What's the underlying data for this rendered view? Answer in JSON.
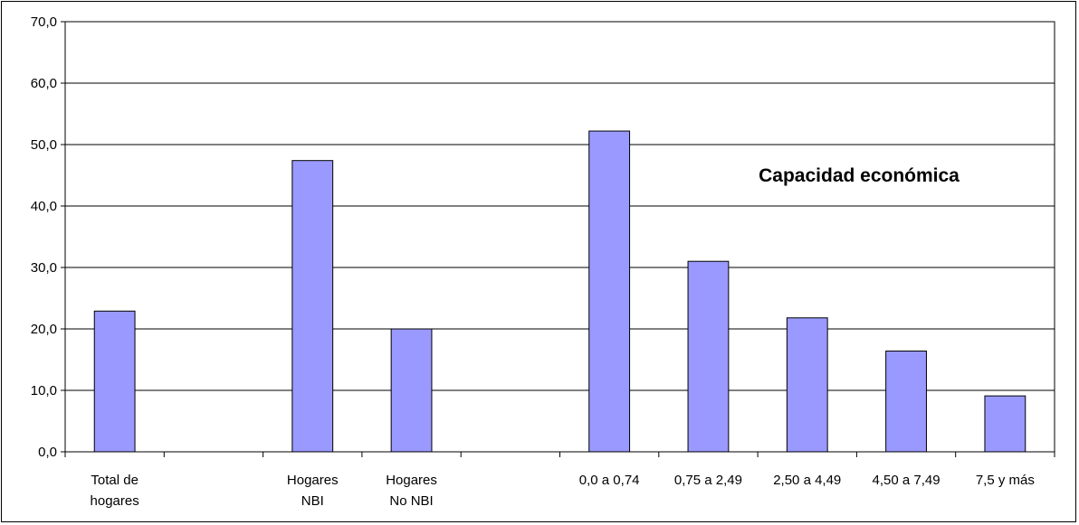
{
  "chart_data": {
    "type": "bar",
    "title": "",
    "annotation": "Capacidad económica",
    "xlabel": "",
    "ylabel": "",
    "ylim": [
      0,
      70
    ],
    "yticks": [
      "0,0",
      "10,0",
      "20,0",
      "30,0",
      "40,0",
      "50,0",
      "60,0",
      "70,0"
    ],
    "grid": true,
    "categories": [
      [
        "Total de",
        "hogares"
      ],
      [],
      [
        "Hogares",
        "NBI"
      ],
      [
        "Hogares",
        "No NBI"
      ],
      [],
      [
        "0,0 a 0,74"
      ],
      [
        "0,75 a 2,49"
      ],
      [
        "2,50 a 4,49"
      ],
      [
        "4,50 a 7,49"
      ],
      [
        "7,5 y más"
      ]
    ],
    "values": [
      22.9,
      null,
      47.4,
      20.0,
      null,
      52.2,
      31.0,
      21.8,
      16.4,
      9.1
    ],
    "bar_color": "#9999ff",
    "bar_stroke": "#000000"
  }
}
